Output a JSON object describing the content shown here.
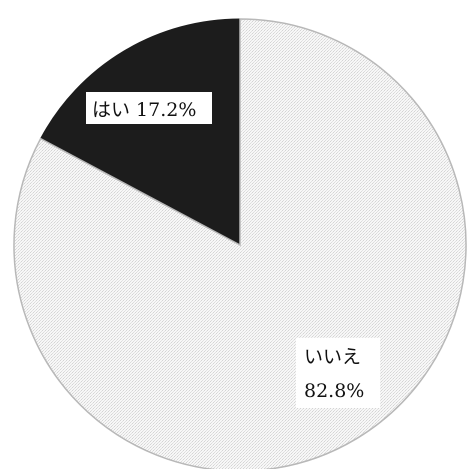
{
  "chart_data": {
    "type": "pie",
    "title": "",
    "slices": [
      {
        "category": "はい",
        "value": 17.2,
        "value_label": "17.2%",
        "color": "#1c1c1c",
        "label_lines": [
          "はい 17.2%"
        ]
      },
      {
        "category": "いいえ",
        "value": 82.8,
        "value_label": "82.8%",
        "color": "#f5f5f5",
        "label_lines": [
          "いいえ",
          "82.8%"
        ]
      }
    ],
    "start": "12 o'clock",
    "direction": "counter-clockwise for はい",
    "legend": "none",
    "outline_color": "#b8b8b8"
  }
}
